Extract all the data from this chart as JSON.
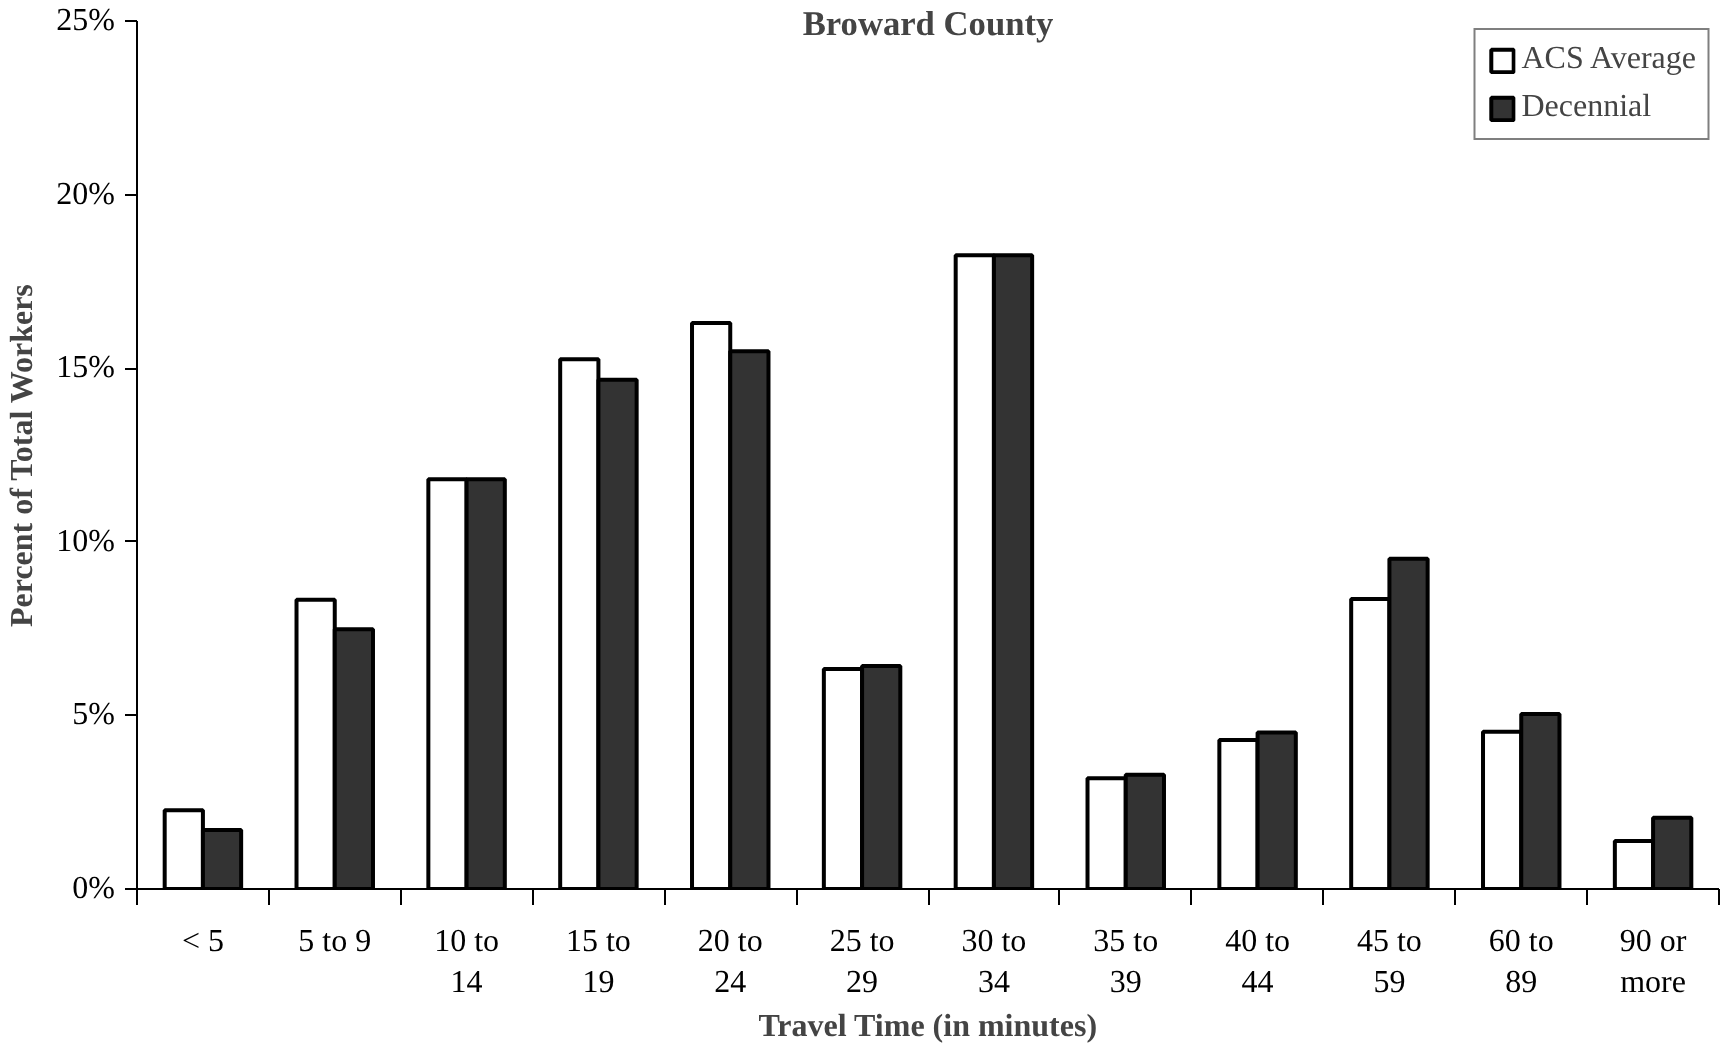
{
  "chart_data": {
    "type": "bar",
    "title": "Broward County",
    "xlabel": "Travel Time (in minutes)",
    "ylabel": "Percent of Total Workers",
    "categories": [
      "< 5",
      "5 to 9",
      "10 to 14",
      "15 to 19",
      "20 to 24",
      "25 to 29",
      "30 to 34",
      "35 to 39",
      "40 to 44",
      "45 to 59",
      "60 to 89",
      "90 or more"
    ],
    "series": [
      {
        "name": "ACS Average",
        "color": "#ffffff",
        "values": [
          2.27,
          8.33,
          11.8,
          15.26,
          16.3,
          6.34,
          18.25,
          3.19,
          4.29,
          8.35,
          4.53,
          1.38
        ]
      },
      {
        "name": "Decennial",
        "color": "#333333",
        "values": [
          1.7,
          7.48,
          11.8,
          14.67,
          15.49,
          6.42,
          18.25,
          3.29,
          4.51,
          9.51,
          5.04,
          2.05
        ]
      }
    ],
    "ylim": [
      0,
      25
    ],
    "yticks": [
      {
        "value": 0,
        "label": "0%"
      },
      {
        "value": 5,
        "label": "5%"
      },
      {
        "value": 10,
        "label": "10%"
      },
      {
        "value": 15,
        "label": "15%"
      },
      {
        "value": 20,
        "label": "20%"
      },
      {
        "value": 25,
        "label": "25%"
      }
    ],
    "grid": false,
    "legend": "top right"
  }
}
